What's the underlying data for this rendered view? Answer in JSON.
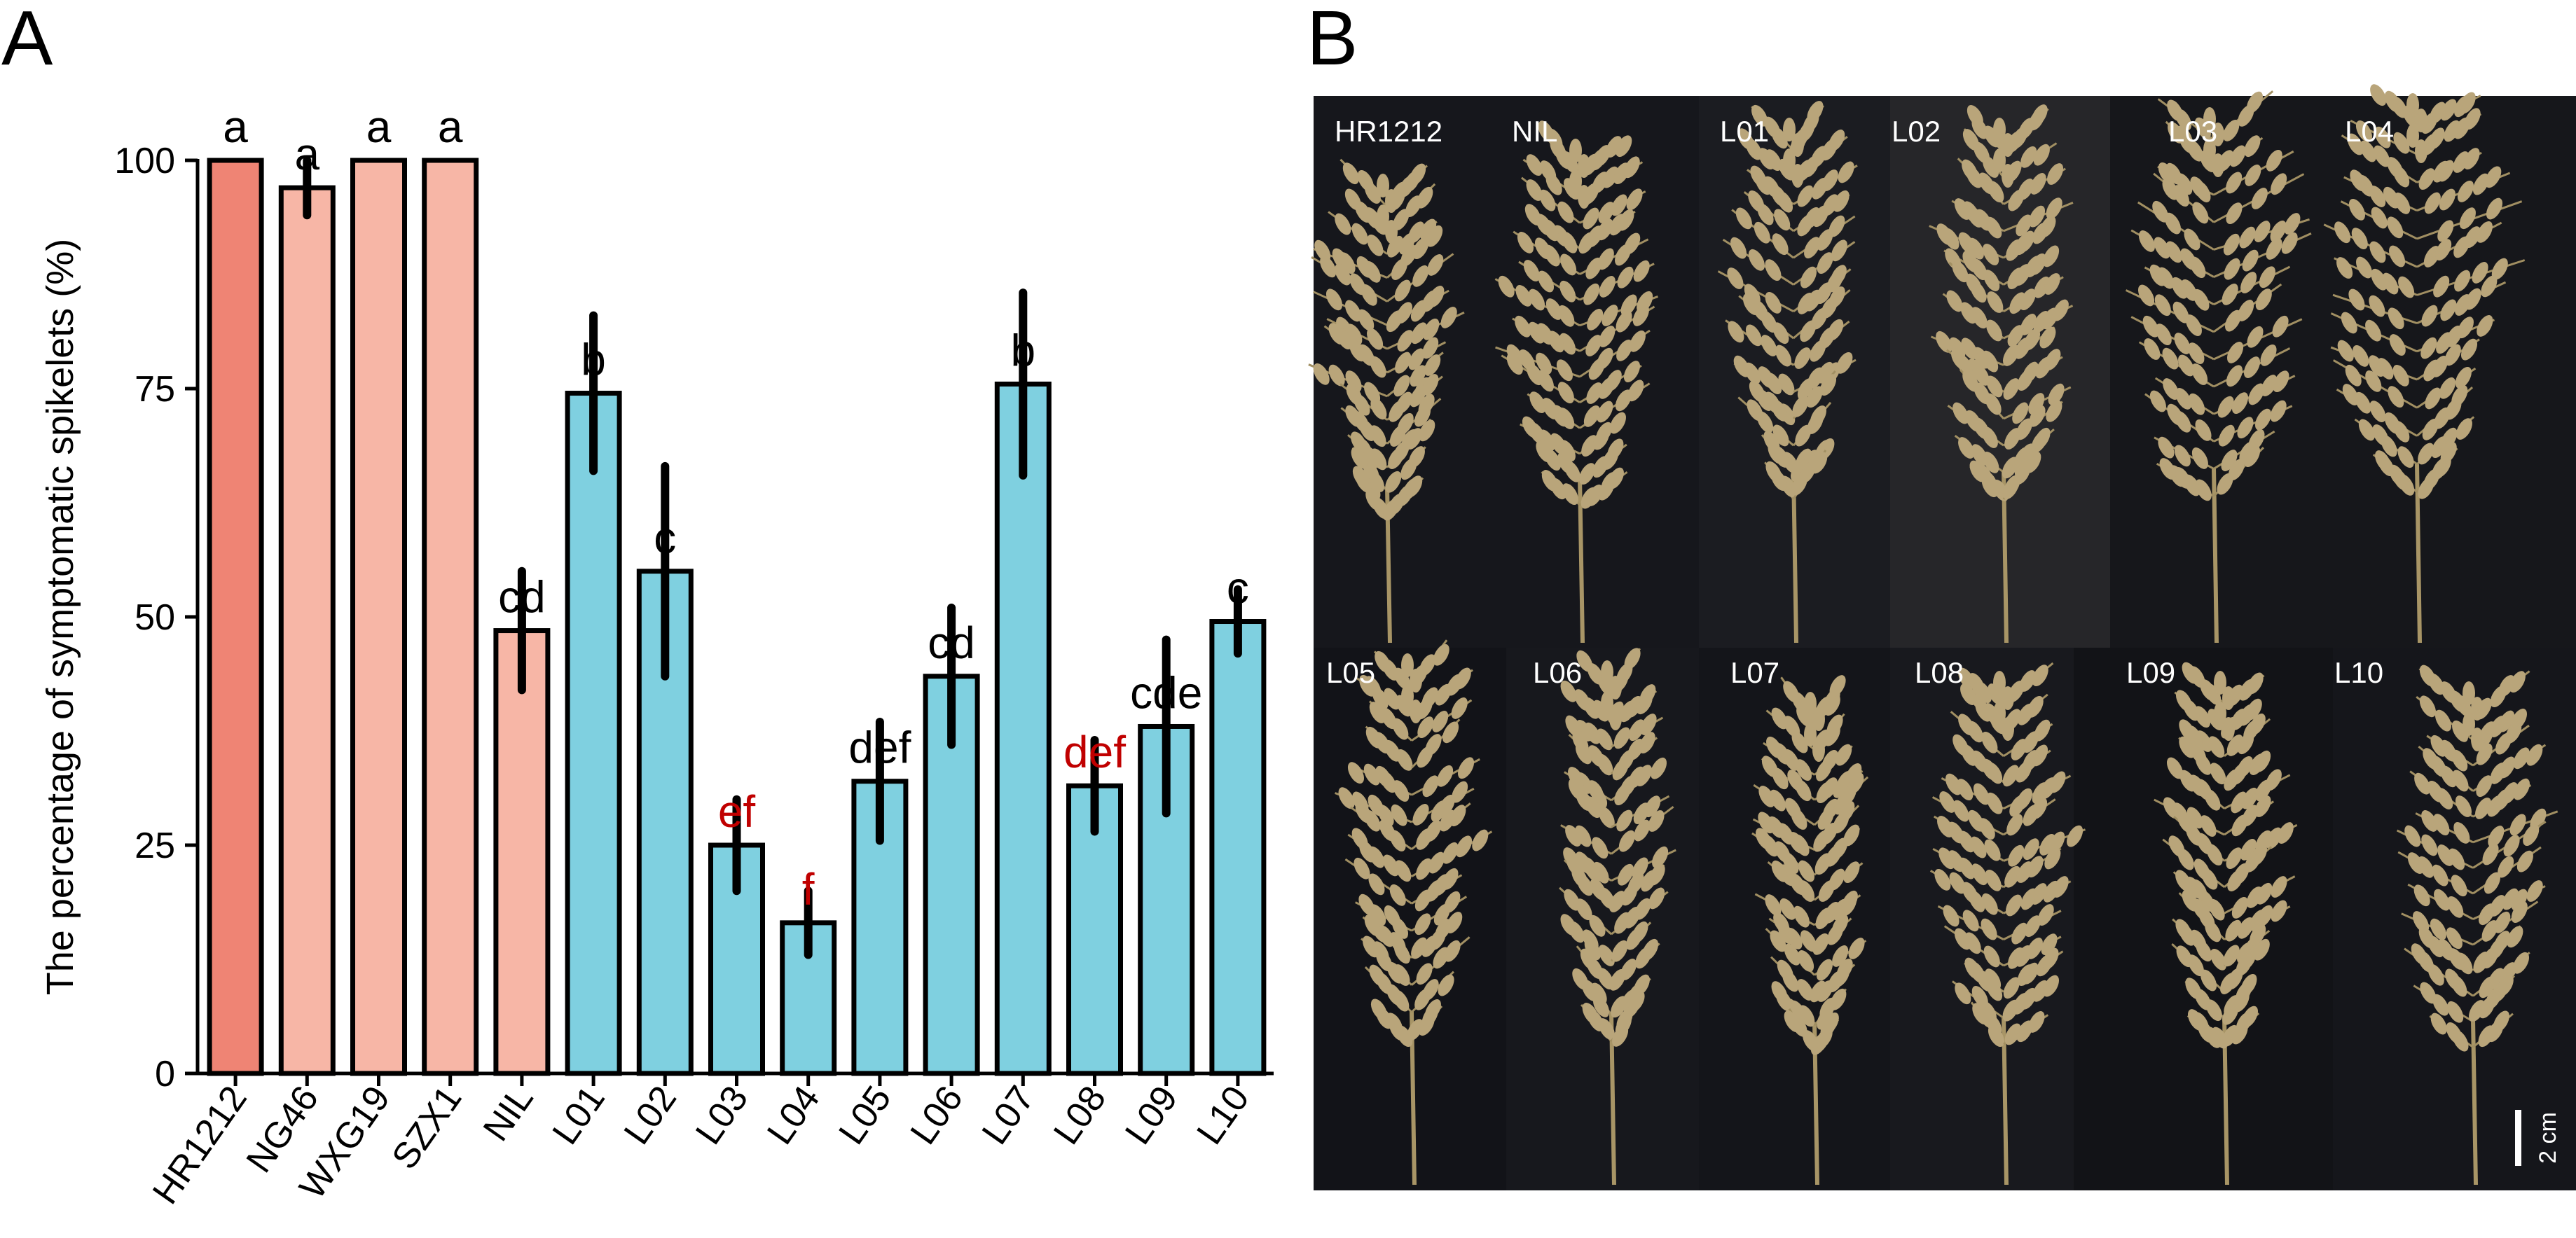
{
  "panels": {
    "a_label": "A",
    "b_label": "B"
  },
  "chart_data": {
    "type": "bar",
    "ylabel": "The percentage of symptomatic spikelets (%)",
    "xlabel": "",
    "ylim": [
      0,
      100
    ],
    "yticks": [
      0,
      25,
      50,
      75,
      100
    ],
    "grid": false,
    "error_bars": true,
    "categories": [
      "HR1212",
      "NG46",
      "WXG19",
      "SZX1",
      "NIL",
      "L01",
      "L02",
      "L03",
      "L04",
      "L05",
      "L06",
      "L07",
      "L08",
      "L09",
      "L10"
    ],
    "values": [
      100,
      97,
      100,
      100,
      48.5,
      74.5,
      55,
      25,
      16.5,
      32,
      43.5,
      75.5,
      31.5,
      38,
      49.5
    ],
    "errors": [
      0,
      3,
      0,
      0,
      6.5,
      8.5,
      11.5,
      5,
      3.5,
      6.5,
      7.5,
      10,
      5,
      9.5,
      3.5
    ],
    "significance": [
      "a",
      "a",
      "a",
      "a",
      "cd",
      "b",
      "c",
      "ef",
      "f",
      "def",
      "cd",
      "b",
      "def",
      "cde",
      "c"
    ],
    "significance_colors": [
      "#000000",
      "#000000",
      "#000000",
      "#000000",
      "#000000",
      "#000000",
      "#000000",
      "#c00000",
      "#c00000",
      "#000000",
      "#000000",
      "#000000",
      "#c00000",
      "#000000",
      "#000000"
    ],
    "bar_colors": [
      "#ef8474",
      "#f7b6a6",
      "#f7b6a6",
      "#f7b6a6",
      "#f7b6a6",
      "#7fd0e0",
      "#7fd0e0",
      "#7fd0e0",
      "#7fd0e0",
      "#7fd0e0",
      "#7fd0e0",
      "#7fd0e0",
      "#7fd0e0",
      "#7fd0e0",
      "#7fd0e0"
    ]
  },
  "photo_panel": {
    "row1_labels": [
      "HR1212",
      "NIL",
      "L01",
      "L02",
      "L03",
      "L04"
    ],
    "row2_labels": [
      "L05",
      "L06",
      "L07",
      "L08",
      "L09",
      "L10"
    ],
    "scale_bar_label": "2 cm",
    "background_color": "#15161b",
    "panicle_color": "#b9a57a"
  }
}
